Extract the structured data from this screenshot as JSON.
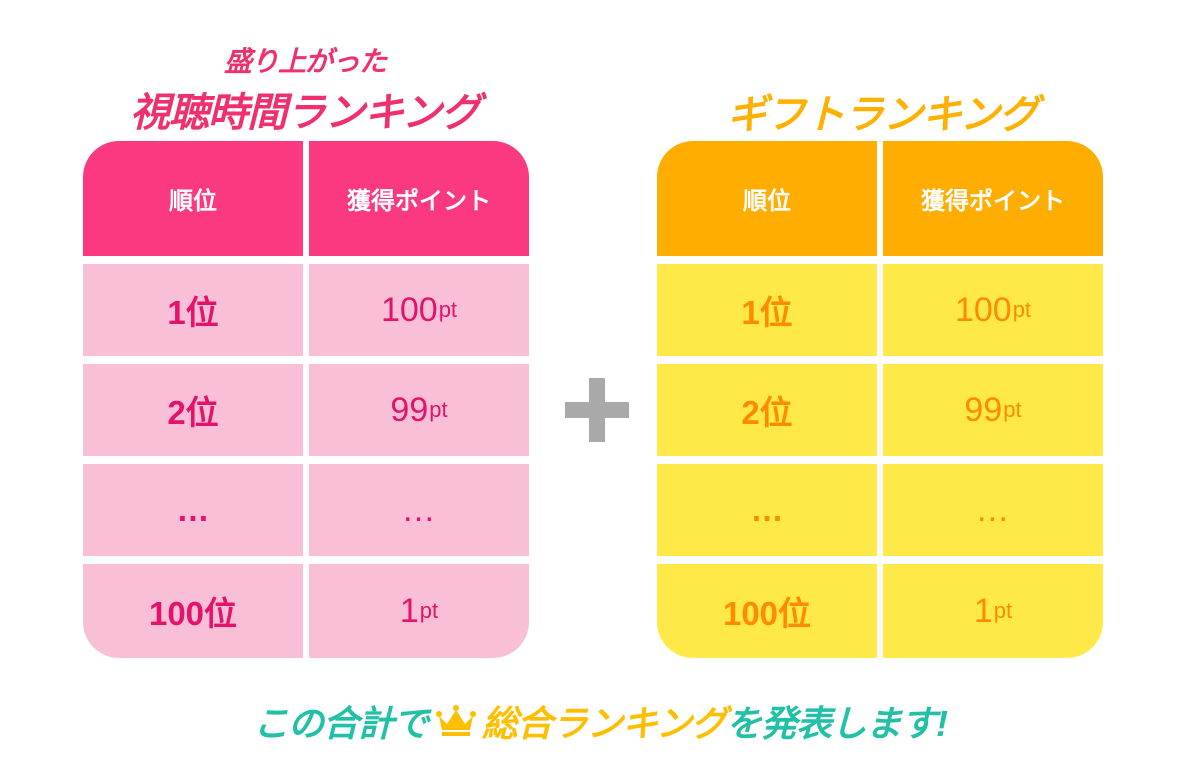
{
  "titles": {
    "left_sub": "盛り上がった",
    "left_main": "視聴時間ランキング",
    "right_main": "ギフトランキング"
  },
  "tables": {
    "view_time": {
      "headers": [
        "順位",
        "獲得ポイント"
      ],
      "rows": [
        {
          "rank": "1位",
          "points": "100",
          "unit": "pt"
        },
        {
          "rank": "2位",
          "points": "99",
          "unit": "pt"
        },
        {
          "rank": "…",
          "points": "…",
          "unit": ""
        },
        {
          "rank": "100位",
          "points": "1",
          "unit": "pt"
        }
      ]
    },
    "gift": {
      "headers": [
        "順位",
        "獲得ポイント"
      ],
      "rows": [
        {
          "rank": "1位",
          "points": "100",
          "unit": "pt"
        },
        {
          "rank": "2位",
          "points": "99",
          "unit": "pt"
        },
        {
          "rank": "…",
          "points": "…",
          "unit": ""
        },
        {
          "rank": "100位",
          "points": "1",
          "unit": "pt"
        }
      ]
    }
  },
  "plus_icon": "plus-icon",
  "footer": {
    "part1": "この合計で",
    "crown_icon": "crown-icon",
    "part2": "総合ランキング",
    "part3": "を発表します!"
  },
  "colors": {
    "pink_header": "#fb3980",
    "pink_cell": "#f9bfd6",
    "pink_text": "#e4126a",
    "orange_header": "#ffad00",
    "yellow_cell": "#ffe948",
    "orange_text": "#ff8b00",
    "teal_text": "#22c0a6",
    "gold_text": "#ffbe00",
    "plus_gray": "#a9a9a9"
  }
}
